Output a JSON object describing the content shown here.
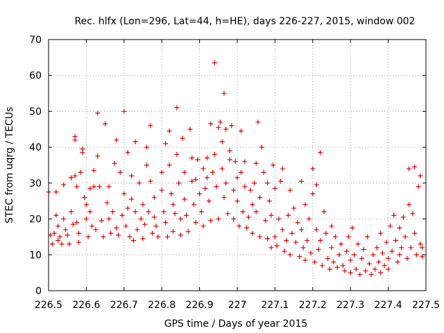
{
  "chart_data": {
    "type": "scatter",
    "title": "Rec. hlfx (Lon=296, Lat=44, h=HE), days 226-227, 2015, window 002",
    "xlabel": "GPS time / Days of year 2015",
    "ylabel": "STEC from uqrg / TECUs",
    "xlim": [
      226.5,
      227.5
    ],
    "ylim": [
      0,
      70
    ],
    "x_ticks": [
      "226.5",
      "226.6",
      "226.7",
      "226.8",
      "226.9",
      "227",
      "227.1",
      "227.2",
      "227.3",
      "227.4",
      "227.5"
    ],
    "y_ticks": [
      "0",
      "10",
      "20",
      "30",
      "40",
      "50",
      "60",
      "70"
    ],
    "grid": true,
    "marker": "+",
    "color": "#e00000",
    "points": [
      [
        226.5,
        27.5
      ],
      [
        226.505,
        15.5
      ],
      [
        226.51,
        13.0
      ],
      [
        226.515,
        16.0
      ],
      [
        226.52,
        27.5
      ],
      [
        226.52,
        21.0
      ],
      [
        226.525,
        18.0
      ],
      [
        226.525,
        14.0
      ],
      [
        226.53,
        15.0
      ],
      [
        226.535,
        13.0
      ],
      [
        226.54,
        29.5
      ],
      [
        226.54,
        20.0
      ],
      [
        226.545,
        17.0
      ],
      [
        226.55,
        15.5
      ],
      [
        226.555,
        13.0
      ],
      [
        226.56,
        31.5
      ],
      [
        226.56,
        22.0
      ],
      [
        226.565,
        18.5
      ],
      [
        226.57,
        43.0
      ],
      [
        226.57,
        42.0
      ],
      [
        226.57,
        32.0
      ],
      [
        226.575,
        29.0
      ],
      [
        226.575,
        19.0
      ],
      [
        226.58,
        16.0
      ],
      [
        226.58,
        13.5
      ],
      [
        226.585,
        33.0
      ],
      [
        226.59,
        39.5
      ],
      [
        226.59,
        38.5
      ],
      [
        226.595,
        26.0
      ],
      [
        226.6,
        24.0
      ],
      [
        226.6,
        20.0
      ],
      [
        226.605,
        15.0
      ],
      [
        226.61,
        28.5
      ],
      [
        226.61,
        22.0
      ],
      [
        226.615,
        18.0
      ],
      [
        226.62,
        33.5
      ],
      [
        226.62,
        29.0
      ],
      [
        226.625,
        17.0
      ],
      [
        226.63,
        49.5
      ],
      [
        226.63,
        37.5
      ],
      [
        226.635,
        29.0
      ],
      [
        226.64,
        19.5
      ],
      [
        226.645,
        15.0
      ],
      [
        226.65,
        46.5
      ],
      [
        226.655,
        24.5
      ],
      [
        226.66,
        29.0
      ],
      [
        226.66,
        20.0
      ],
      [
        226.665,
        16.0
      ],
      [
        226.67,
        22.0
      ],
      [
        226.675,
        35.5
      ],
      [
        226.68,
        42.0
      ],
      [
        226.68,
        17.5
      ],
      [
        226.685,
        15.5
      ],
      [
        226.69,
        33.0
      ],
      [
        226.695,
        21.0
      ],
      [
        226.7,
        50.0
      ],
      [
        226.7,
        27.0
      ],
      [
        226.705,
        18.0
      ],
      [
        226.71,
        38.5
      ],
      [
        226.71,
        23.0
      ],
      [
        226.715,
        15.0
      ],
      [
        226.72,
        32.0
      ],
      [
        226.72,
        25.5
      ],
      [
        226.725,
        14.0
      ],
      [
        226.73,
        41.5
      ],
      [
        226.73,
        22.0
      ],
      [
        226.735,
        17.0
      ],
      [
        226.74,
        30.0
      ],
      [
        226.745,
        20.0
      ],
      [
        226.75,
        24.0
      ],
      [
        226.75,
        14.5
      ],
      [
        226.755,
        18.5
      ],
      [
        226.76,
        40.0
      ],
      [
        226.76,
        35.0
      ],
      [
        226.765,
        22.0
      ],
      [
        226.77,
        46.0
      ],
      [
        226.77,
        30.5
      ],
      [
        226.775,
        16.0
      ],
      [
        226.78,
        26.0
      ],
      [
        226.78,
        20.5
      ],
      [
        226.785,
        18.0
      ],
      [
        226.79,
        15.0
      ],
      [
        226.8,
        33.0
      ],
      [
        226.8,
        28.0
      ],
      [
        226.805,
        22.0
      ],
      [
        226.81,
        41.0
      ],
      [
        226.81,
        19.0
      ],
      [
        226.815,
        15.0
      ],
      [
        226.82,
        44.5
      ],
      [
        226.82,
        35.0
      ],
      [
        226.825,
        27.0
      ],
      [
        226.83,
        24.0
      ],
      [
        226.83,
        16.5
      ],
      [
        226.835,
        21.5
      ],
      [
        226.84,
        51.0
      ],
      [
        226.84,
        38.0
      ],
      [
        226.845,
        30.0
      ],
      [
        226.85,
        20.0
      ],
      [
        226.85,
        15.5
      ],
      [
        226.855,
        42.5
      ],
      [
        226.86,
        33.0
      ],
      [
        226.86,
        25.5
      ],
      [
        226.865,
        21.0
      ],
      [
        226.87,
        16.5
      ],
      [
        226.875,
        45.0
      ],
      [
        226.88,
        37.0
      ],
      [
        226.88,
        30.5
      ],
      [
        226.885,
        24.0
      ],
      [
        226.89,
        19.0
      ],
      [
        226.89,
        31.0
      ],
      [
        226.895,
        36.5
      ],
      [
        226.9,
        27.0
      ],
      [
        226.905,
        22.0
      ],
      [
        226.91,
        34.0
      ],
      [
        226.91,
        18.0
      ],
      [
        226.915,
        28.5
      ],
      [
        226.92,
        37.0
      ],
      [
        226.92,
        31.5
      ],
      [
        226.925,
        25.0
      ],
      [
        226.93,
        46.5
      ],
      [
        226.93,
        19.5
      ],
      [
        226.935,
        33.0
      ],
      [
        226.94,
        63.5
      ],
      [
        226.94,
        38.0
      ],
      [
        226.945,
        29.0
      ],
      [
        226.95,
        45.5
      ],
      [
        226.95,
        20.0
      ],
      [
        226.955,
        47.0
      ],
      [
        226.96,
        34.0
      ],
      [
        226.96,
        41.5
      ],
      [
        226.965,
        55.0
      ],
      [
        226.965,
        26.0
      ],
      [
        226.97,
        45.0
      ],
      [
        226.97,
        30.0
      ],
      [
        226.975,
        21.5
      ],
      [
        226.98,
        36.5
      ],
      [
        226.98,
        39.0
      ],
      [
        226.985,
        46.0
      ],
      [
        226.99,
        28.0
      ],
      [
        226.99,
        20.0
      ],
      [
        226.995,
        36.0
      ],
      [
        227.0,
        31.5
      ],
      [
        227.0,
        25.0
      ],
      [
        227.005,
        18.0
      ],
      [
        227.01,
        44.5
      ],
      [
        227.01,
        33.0
      ],
      [
        227.015,
        22.0
      ],
      [
        227.02,
        36.0
      ],
      [
        227.02,
        29.0
      ],
      [
        227.025,
        17.5
      ],
      [
        227.03,
        20.5
      ],
      [
        227.035,
        28.0
      ],
      [
        227.04,
        24.0
      ],
      [
        227.04,
        16.0
      ],
      [
        227.045,
        30.0
      ],
      [
        227.05,
        22.0
      ],
      [
        227.05,
        35.5
      ],
      [
        227.055,
        47.0
      ],
      [
        227.06,
        26.0
      ],
      [
        227.06,
        15.0
      ],
      [
        227.065,
        40.0
      ],
      [
        227.07,
        33.0
      ],
      [
        227.075,
        19.5
      ],
      [
        227.08,
        30.0
      ],
      [
        227.08,
        14.5
      ],
      [
        227.085,
        25.0
      ],
      [
        227.09,
        12.0
      ],
      [
        227.09,
        21.0
      ],
      [
        227.095,
        35.0
      ],
      [
        227.1,
        28.5
      ],
      [
        227.1,
        15.0
      ],
      [
        227.105,
        12.5
      ],
      [
        227.11,
        20.0
      ],
      [
        227.115,
        30.5
      ],
      [
        227.12,
        34.0
      ],
      [
        227.12,
        17.0
      ],
      [
        227.125,
        11.0
      ],
      [
        227.13,
        14.0
      ],
      [
        227.135,
        21.0
      ],
      [
        227.14,
        28.0
      ],
      [
        227.14,
        10.0
      ],
      [
        227.145,
        16.0
      ],
      [
        227.15,
        23.0
      ],
      [
        227.155,
        13.5
      ],
      [
        227.16,
        19.0
      ],
      [
        227.165,
        9.5
      ],
      [
        227.17,
        30.5
      ],
      [
        227.17,
        17.0
      ],
      [
        227.175,
        12.0
      ],
      [
        227.18,
        24.0
      ],
      [
        227.18,
        8.5
      ],
      [
        227.185,
        14.0
      ],
      [
        227.19,
        20.0
      ],
      [
        227.195,
        10.5
      ],
      [
        227.2,
        34.0
      ],
      [
        227.2,
        27.0
      ],
      [
        227.205,
        8.0
      ],
      [
        227.21,
        29.5
      ],
      [
        227.21,
        17.0
      ],
      [
        227.215,
        11.5
      ],
      [
        227.22,
        38.5
      ],
      [
        227.22,
        14.0
      ],
      [
        227.225,
        7.0
      ],
      [
        227.23,
        22.0
      ],
      [
        227.235,
        16.0
      ],
      [
        227.24,
        9.0
      ],
      [
        227.245,
        6.0
      ],
      [
        227.25,
        18.0
      ],
      [
        227.25,
        12.0
      ],
      [
        227.255,
        8.0
      ],
      [
        227.26,
        15.0
      ],
      [
        227.265,
        6.5
      ],
      [
        227.27,
        10.0
      ],
      [
        227.275,
        13.0
      ],
      [
        227.28,
        7.0
      ],
      [
        227.285,
        5.5
      ],
      [
        227.29,
        11.0
      ],
      [
        227.295,
        15.0
      ],
      [
        227.3,
        8.5
      ],
      [
        227.3,
        5.0
      ],
      [
        227.305,
        17.5
      ],
      [
        227.31,
        10.0
      ],
      [
        227.315,
        6.0
      ],
      [
        227.32,
        13.0
      ],
      [
        227.325,
        4.5
      ],
      [
        227.33,
        9.0
      ],
      [
        227.335,
        11.5
      ],
      [
        227.34,
        5.5
      ],
      [
        227.345,
        15.0
      ],
      [
        227.35,
        7.5
      ],
      [
        227.355,
        4.5
      ],
      [
        227.36,
        10.0
      ],
      [
        227.365,
        6.0
      ],
      [
        227.37,
        12.0
      ],
      [
        227.375,
        8.0
      ],
      [
        227.38,
        16.0
      ],
      [
        227.38,
        5.0
      ],
      [
        227.385,
        10.5
      ],
      [
        227.39,
        7.0
      ],
      [
        227.395,
        13.5
      ],
      [
        227.4,
        9.0
      ],
      [
        227.4,
        6.0
      ],
      [
        227.405,
        18.0
      ],
      [
        227.41,
        11.0
      ],
      [
        227.415,
        21.0
      ],
      [
        227.42,
        14.0
      ],
      [
        227.425,
        8.0
      ],
      [
        227.43,
        17.5
      ],
      [
        227.43,
        10.0
      ],
      [
        227.435,
        12.0
      ],
      [
        227.44,
        20.5
      ],
      [
        227.445,
        15.0
      ],
      [
        227.45,
        9.0
      ],
      [
        227.455,
        34.0
      ],
      [
        227.455,
        24.0
      ],
      [
        227.46,
        12.0
      ],
      [
        227.465,
        21.5
      ],
      [
        227.47,
        34.5
      ],
      [
        227.47,
        16.0
      ],
      [
        227.475,
        10.0
      ],
      [
        227.48,
        29.0
      ],
      [
        227.485,
        32.0
      ],
      [
        227.485,
        13.0
      ],
      [
        227.49,
        12.0
      ],
      [
        227.49,
        9.5
      ]
    ]
  }
}
